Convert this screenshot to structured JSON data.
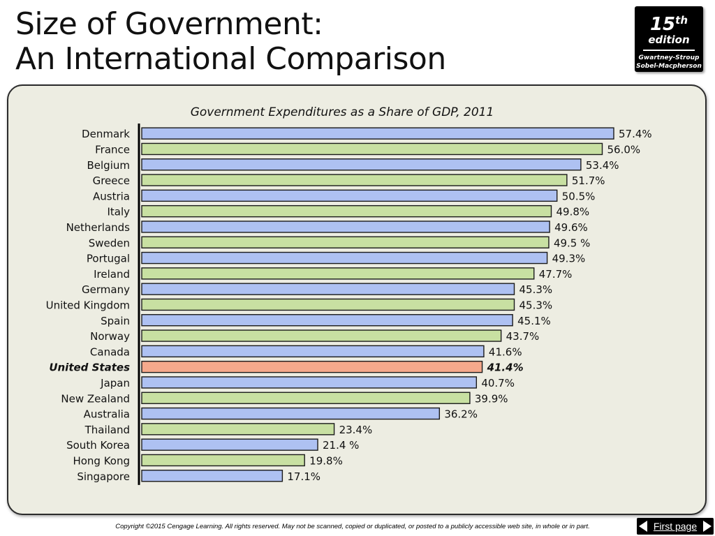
{
  "slide": {
    "title_line1": "Size of Government:",
    "title_line2": "An International Comparison"
  },
  "badge": {
    "number": "15",
    "suffix": "th",
    "word": "edition",
    "author_line1": "Gwartney-Stroup",
    "author_line2": "Sobel-Macpherson"
  },
  "footer": {
    "copyright": "Copyright ©2015 Cengage Learning. All rights reserved. May not be scanned, copied or duplicated, or posted to a publicly accessible web site, in whole or in part.",
    "nav_label": "First page"
  },
  "colors": {
    "blue": "#aec1f2",
    "green": "#c8e0a2",
    "highlight": "#f5a98c",
    "panel": "#edede2"
  },
  "chart_data": {
    "type": "bar",
    "orientation": "horizontal",
    "title": "Government Expenditures as a Share of GDP, 2011",
    "xlabel": "",
    "ylabel": "",
    "xlim": [
      0,
      57.4
    ],
    "categories": [
      "Denmark",
      "France",
      "Belgium",
      "Greece",
      "Austria",
      "Italy",
      "Netherlands",
      "Sweden",
      "Portugal",
      "Ireland",
      "Germany",
      "United Kingdom",
      "Spain",
      "Norway",
      "Canada",
      "United States",
      "Japan",
      "New Zealand",
      "Australia",
      "Thailand",
      "South Korea",
      "Hong Kong",
      "Singapore"
    ],
    "values": [
      57.4,
      56.0,
      53.4,
      51.7,
      50.5,
      49.8,
      49.6,
      49.5,
      49.3,
      47.7,
      45.3,
      45.3,
      45.1,
      43.7,
      41.6,
      41.4,
      40.7,
      39.9,
      36.2,
      23.4,
      21.4,
      19.8,
      17.1
    ],
    "labels": [
      "57.4%",
      "56.0%",
      "53.4%",
      "51.7%",
      "50.5%",
      "49.8%",
      "49.6%",
      "49.5 %",
      "49.3%",
      "47.7%",
      "45.3%",
      "45.3%",
      "45.1%",
      "43.7%",
      "41.6%",
      "41.4%",
      "40.7%",
      "39.9%",
      "36.2%",
      "23.4%",
      "21.4 %",
      "19.8%",
      "17.1%"
    ],
    "highlight": "United States",
    "color_pattern": [
      "blue",
      "green"
    ],
    "grid": false,
    "legend": "none"
  }
}
